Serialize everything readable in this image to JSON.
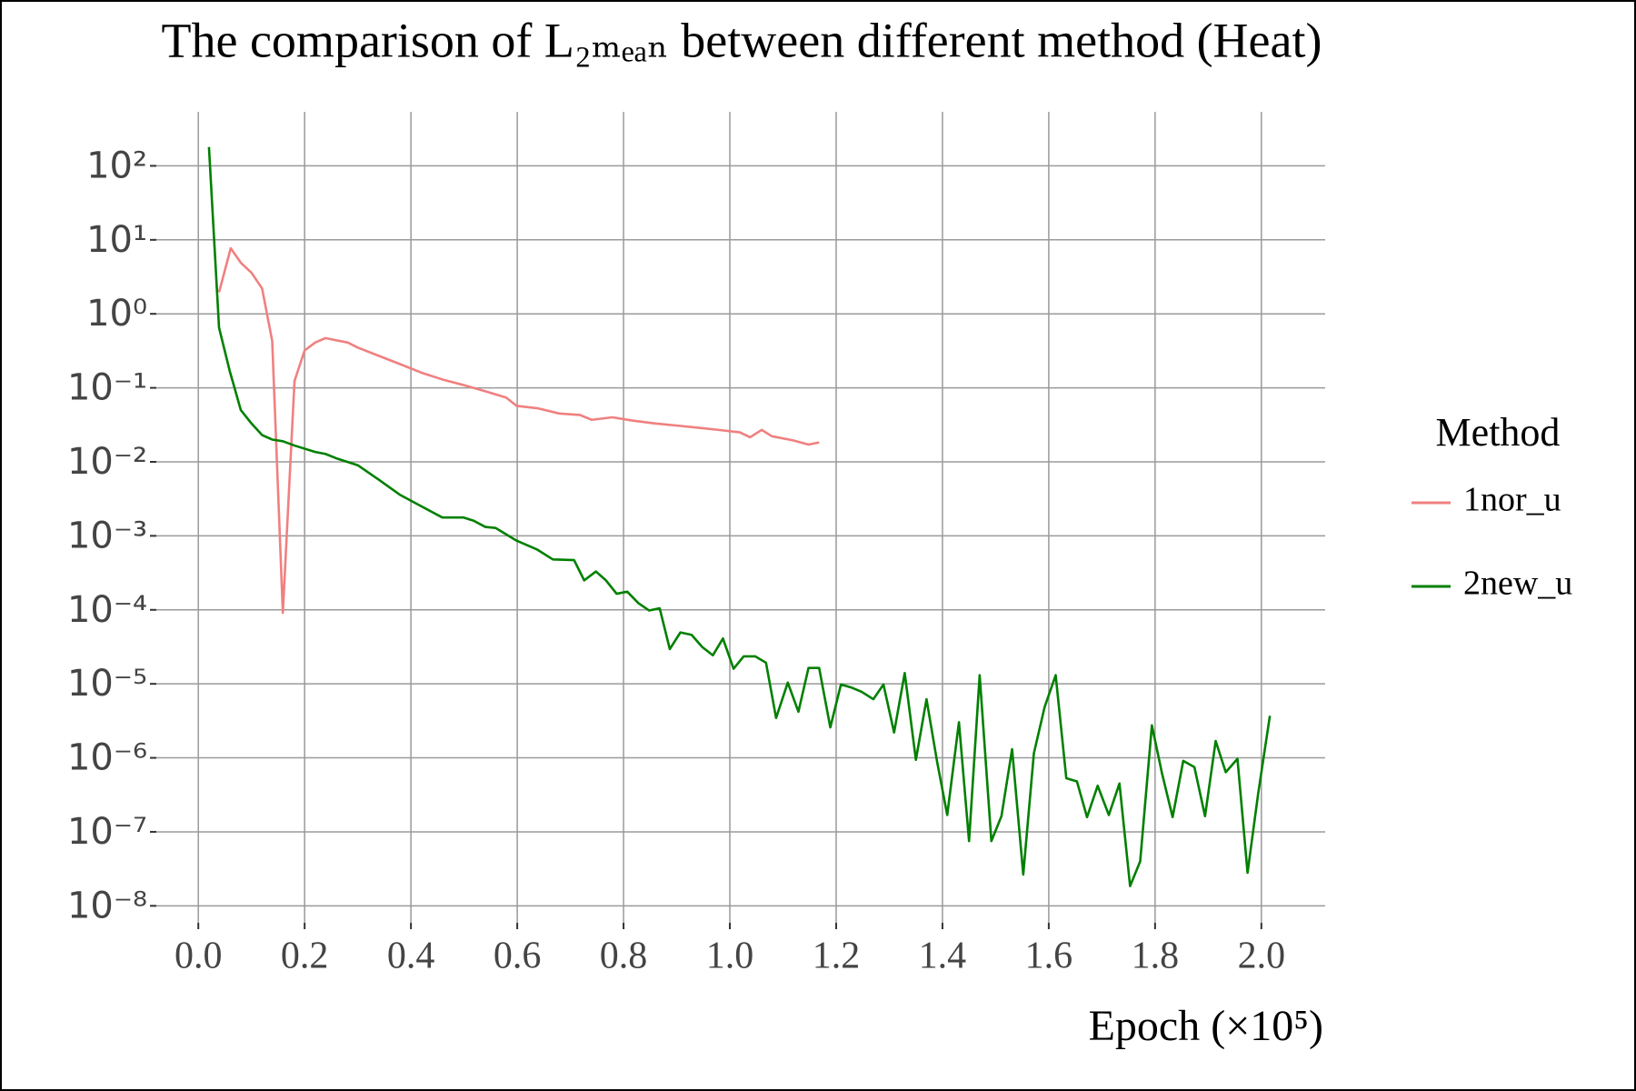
{
  "chart_data": {
    "type": "line",
    "title": "The comparison of L₂ₘₑₐₙ between different method (Heat)",
    "x_label": "Epoch (×10⁵)",
    "legend_title": "Method",
    "legend": "right",
    "log_y": true,
    "grid": true,
    "xlim": [
      -0.079,
      2.12
    ],
    "ylim": [
      5.9e-09,
      537
    ],
    "xticks": [
      {
        "value": 0,
        "label": "0.0"
      },
      0.2,
      0.4,
      0.6,
      0.8,
      {
        "value": 1,
        "label": "1.0"
      },
      1.2,
      1.4,
      1.6,
      1.8,
      {
        "value": 2,
        "label": "2.0"
      }
    ],
    "yticks": [
      {
        "value": 100,
        "label": "10²"
      },
      {
        "value": 10,
        "label": "10¹"
      },
      {
        "value": 1,
        "label": "10⁰"
      },
      {
        "value": 0.1,
        "label": "10⁻¹"
      },
      {
        "value": 0.01,
        "label": "10⁻²"
      },
      {
        "value": 0.001,
        "label": "10⁻³"
      },
      {
        "value": 0.0001,
        "label": "10⁻⁴"
      },
      {
        "value": 1e-05,
        "label": "10⁻⁵"
      },
      {
        "value": 1e-06,
        "label": "10⁻⁶"
      },
      {
        "value": 1e-07,
        "label": "10⁻⁷"
      },
      {
        "value": 1e-08,
        "label": "10⁻⁸"
      }
    ],
    "series": [
      {
        "name": "1nor_u",
        "color": "#f08080",
        "x": [
          0.039,
          0.061,
          0.08,
          0.1,
          0.12,
          0.139,
          0.159,
          0.181,
          0.2,
          0.22,
          0.239,
          0.259,
          0.281,
          0.3,
          0.34,
          0.379,
          0.42,
          0.459,
          0.499,
          0.54,
          0.579,
          0.599,
          0.638,
          0.679,
          0.718,
          0.74,
          0.779,
          0.818,
          0.86,
          0.899,
          0.938,
          0.979,
          1.019,
          1.038,
          1.06,
          1.079,
          1.119,
          1.148,
          1.168
        ],
        "values": [
          1.96,
          7.7,
          4.9,
          3.6,
          2.2,
          0.43,
          9.1e-05,
          0.124,
          0.32,
          0.41,
          0.47,
          0.44,
          0.41,
          0.35,
          0.27,
          0.21,
          0.16,
          0.13,
          0.109,
          0.09,
          0.074,
          0.057,
          0.053,
          0.045,
          0.043,
          0.037,
          0.04,
          0.036,
          0.033,
          0.031,
          0.029,
          0.027,
          0.025,
          0.0215,
          0.027,
          0.0222,
          0.0195,
          0.0171,
          0.0183
        ]
      },
      {
        "name": "2new_u",
        "color": "#008000",
        "x": [
          0.02,
          0.039,
          0.059,
          0.08,
          0.1,
          0.12,
          0.139,
          0.159,
          0.181,
          0.22,
          0.239,
          0.259,
          0.3,
          0.34,
          0.379,
          0.42,
          0.459,
          0.499,
          0.518,
          0.54,
          0.559,
          0.599,
          0.638,
          0.667,
          0.707,
          0.726,
          0.748,
          0.767,
          0.787,
          0.807,
          0.828,
          0.848,
          0.868,
          0.887,
          0.907,
          0.928,
          0.948,
          0.968,
          0.987,
          1.007,
          1.026,
          1.048,
          1.068,
          1.087,
          1.109,
          1.129,
          1.148,
          1.168,
          1.189,
          1.209,
          1.229,
          1.248,
          1.27,
          1.289,
          1.309,
          1.329,
          1.35,
          1.37,
          1.39,
          1.409,
          1.431,
          1.45,
          1.47,
          1.492,
          1.511,
          1.531,
          1.552,
          1.572,
          1.592,
          1.613,
          1.633,
          1.653,
          1.672,
          1.692,
          1.713,
          1.733,
          1.753,
          1.772,
          1.794,
          1.813,
          1.833,
          1.853,
          1.874,
          1.894,
          1.914,
          1.933,
          1.955,
          1.974,
          1.994,
          2.016
        ],
        "values": [
          180,
          0.65,
          0.17,
          0.05,
          0.033,
          0.023,
          0.02,
          0.019,
          0.0166,
          0.0136,
          0.0128,
          0.0112,
          0.009,
          0.0057,
          0.0036,
          0.0025,
          0.00177,
          0.00177,
          0.0016,
          0.00132,
          0.00128,
          0.00086,
          0.00065,
          0.00048,
          0.00047,
          0.00025,
          0.00033,
          0.00025,
          0.000165,
          0.000176,
          0.000123,
          9.8e-05,
          0.000105,
          2.95e-05,
          4.95e-05,
          4.6e-05,
          3.15e-05,
          2.43e-05,
          4.1e-05,
          1.6e-05,
          2.35e-05,
          2.35e-05,
          1.93e-05,
          3.46e-06,
          1.04e-05,
          4.2e-06,
          1.64e-05,
          1.64e-05,
          2.58e-06,
          9.8e-06,
          8.9e-06,
          7.8e-06,
          6.2e-06,
          9.8e-06,
          2.2e-06,
          1.4e-05,
          9.4e-07,
          6.2e-06,
          8.8e-07,
          1.69e-07,
          3.03e-06,
          7.5e-08,
          1.31e-05,
          7.5e-08,
          1.63e-07,
          1.31e-06,
          2.65e-08,
          1.15e-06,
          4.8e-06,
          1.31e-05,
          5.3e-07,
          4.8e-07,
          1.58e-07,
          4.2e-07,
          1.69e-07,
          4.5e-07,
          1.85e-08,
          4e-08,
          2.75e-06,
          6.2e-07,
          1.58e-07,
          9.1e-07,
          7.5e-07,
          1.63e-07,
          1.69e-06,
          6.4e-07,
          9.7e-07,
          2.8e-08,
          3.3e-07,
          3.7e-06
        ]
      }
    ]
  }
}
